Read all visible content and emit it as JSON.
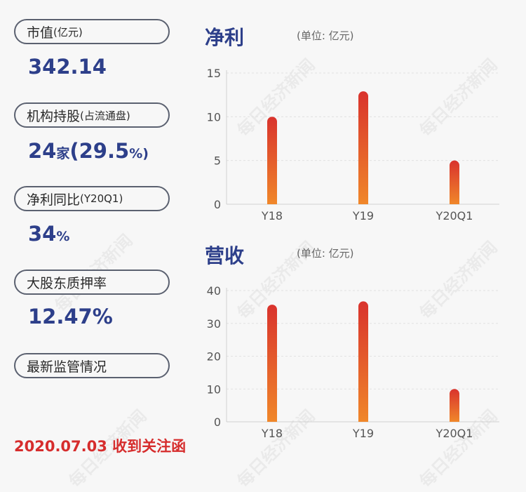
{
  "watermark": "每日经济新闻",
  "left_panel": {
    "items": [
      {
        "label_main": "市值",
        "label_sub": "(亿元)",
        "value": "342.14",
        "value_unit": ""
      },
      {
        "label_main": "机构持股",
        "label_sub": "(占流通盘)",
        "value": "24",
        "value_unit": "家",
        "value2": "(29.5",
        "value2_unit": "%)"
      },
      {
        "label_main": "净利同比",
        "label_sub": "(Y20Q1)",
        "value": "34",
        "value_unit": "%"
      },
      {
        "label_main": "大股东质押率",
        "label_sub": "",
        "value": "12.47%",
        "value_unit": ""
      },
      {
        "label_main": "最新监管情况",
        "label_sub": ""
      }
    ],
    "alert": "2020.07.03 收到关注函"
  },
  "chart_data": [
    {
      "type": "bar",
      "title": "净利",
      "unit_label": "(单位: 亿元)",
      "categories": [
        "Y18",
        "Y19",
        "Y20Q1"
      ],
      "values": [
        10.0,
        12.9,
        5.0
      ],
      "ylim": [
        0,
        15
      ],
      "yticks": [
        0,
        5,
        10,
        15
      ],
      "grid": true,
      "colors": {
        "top": "#d9332d",
        "bottom": "#f0872a"
      }
    },
    {
      "type": "bar",
      "title": "营收",
      "unit_label": "(单位: 亿元)",
      "categories": [
        "Y18",
        "Y19",
        "Y20Q1"
      ],
      "values": [
        35.7,
        36.7,
        10.0
      ],
      "ylim": [
        0,
        40
      ],
      "yticks": [
        0,
        10,
        20,
        30,
        40
      ],
      "grid": true,
      "colors": {
        "top": "#d9332d",
        "bottom": "#f0872a"
      }
    }
  ]
}
